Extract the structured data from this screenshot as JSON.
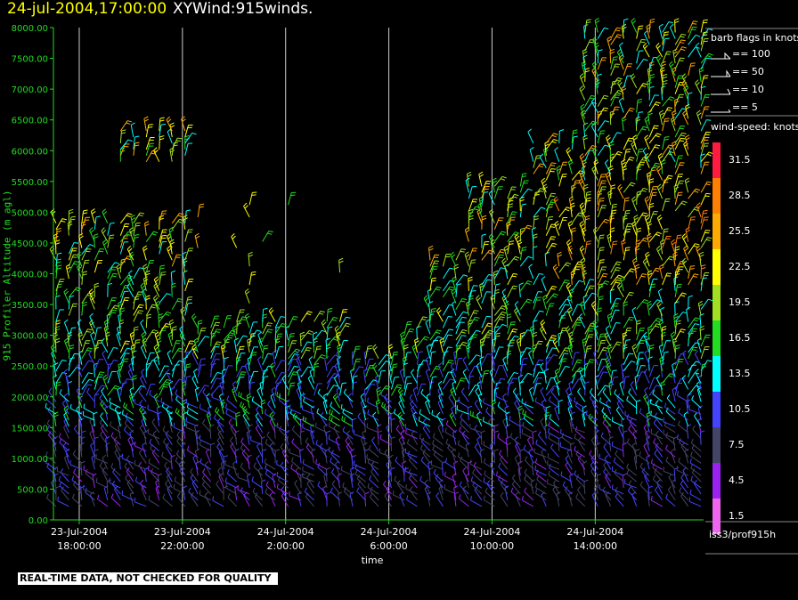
{
  "title": {
    "date": "24-jul-2004,17:00:00",
    "name": "XYWind:915winds."
  },
  "legend": {
    "flags_title": "barb flags in knots",
    "flags": [
      {
        "label": "== 100"
      },
      {
        "label": "== 50"
      },
      {
        "label": "== 10"
      },
      {
        "label": "== 5"
      }
    ],
    "speed_title": "wind-speed: knots",
    "speed_bins": [
      {
        "label": "31.5",
        "color": "#ff1a40"
      },
      {
        "label": "28.5",
        "color": "#ff8000"
      },
      {
        "label": "25.5",
        "color": "#ffaa00"
      },
      {
        "label": "22.5",
        "color": "#ffff00"
      },
      {
        "label": "19.5",
        "color": "#a0e020"
      },
      {
        "label": "16.5",
        "color": "#22dd22"
      },
      {
        "label": "13.5",
        "color": "#00ffff"
      },
      {
        "label": "10.5",
        "color": "#4444ff"
      },
      {
        "label": "7.5",
        "color": "#444466"
      },
      {
        "label": "4.5",
        "color": "#9922ee"
      },
      {
        "label": "1.5",
        "color": "#ee66ee"
      }
    ],
    "source": "iss3/prof915h"
  },
  "note": "REAL-TIME DATA, NOT CHECKED FOR QUALITY",
  "chart_data": {
    "type": "wind barb time-height",
    "xlabel": "time",
    "ylabel": "915 Profiler Altitude (m agl)",
    "x_ticks": [
      {
        "line1": "23-Jul-2004",
        "line2": "18:00:00",
        "hours": 0
      },
      {
        "line1": "23-Jul-2004",
        "line2": "22:00:00",
        "hours": 4
      },
      {
        "line1": "24-Jul-2004",
        "line2": "2:00:00",
        "hours": 8
      },
      {
        "line1": "24-Jul-2004",
        "line2": "6:00:00",
        "hours": 12
      },
      {
        "line1": "24-Jul-2004",
        "line2": "10:00:00",
        "hours": 16
      },
      {
        "line1": "24-Jul-2004",
        "line2": "14:00:00",
        "hours": 20
      }
    ],
    "x_range_hours": [
      -1,
      24.2
    ],
    "y_ticks": [
      "8000.00",
      "7500.00",
      "7000.00",
      "6500.00",
      "6000.00",
      "5500.00",
      "5000.00",
      "4500.00",
      "4000.00",
      "3500.00",
      "3000.00",
      "2500.00",
      "2000.00",
      "1500.00",
      "1000.00",
      "500.00",
      "0.00"
    ],
    "ylim": [
      0,
      8000
    ],
    "vertical_gridlines_at_ticks": true,
    "axis_color": "#22dd22"
  }
}
